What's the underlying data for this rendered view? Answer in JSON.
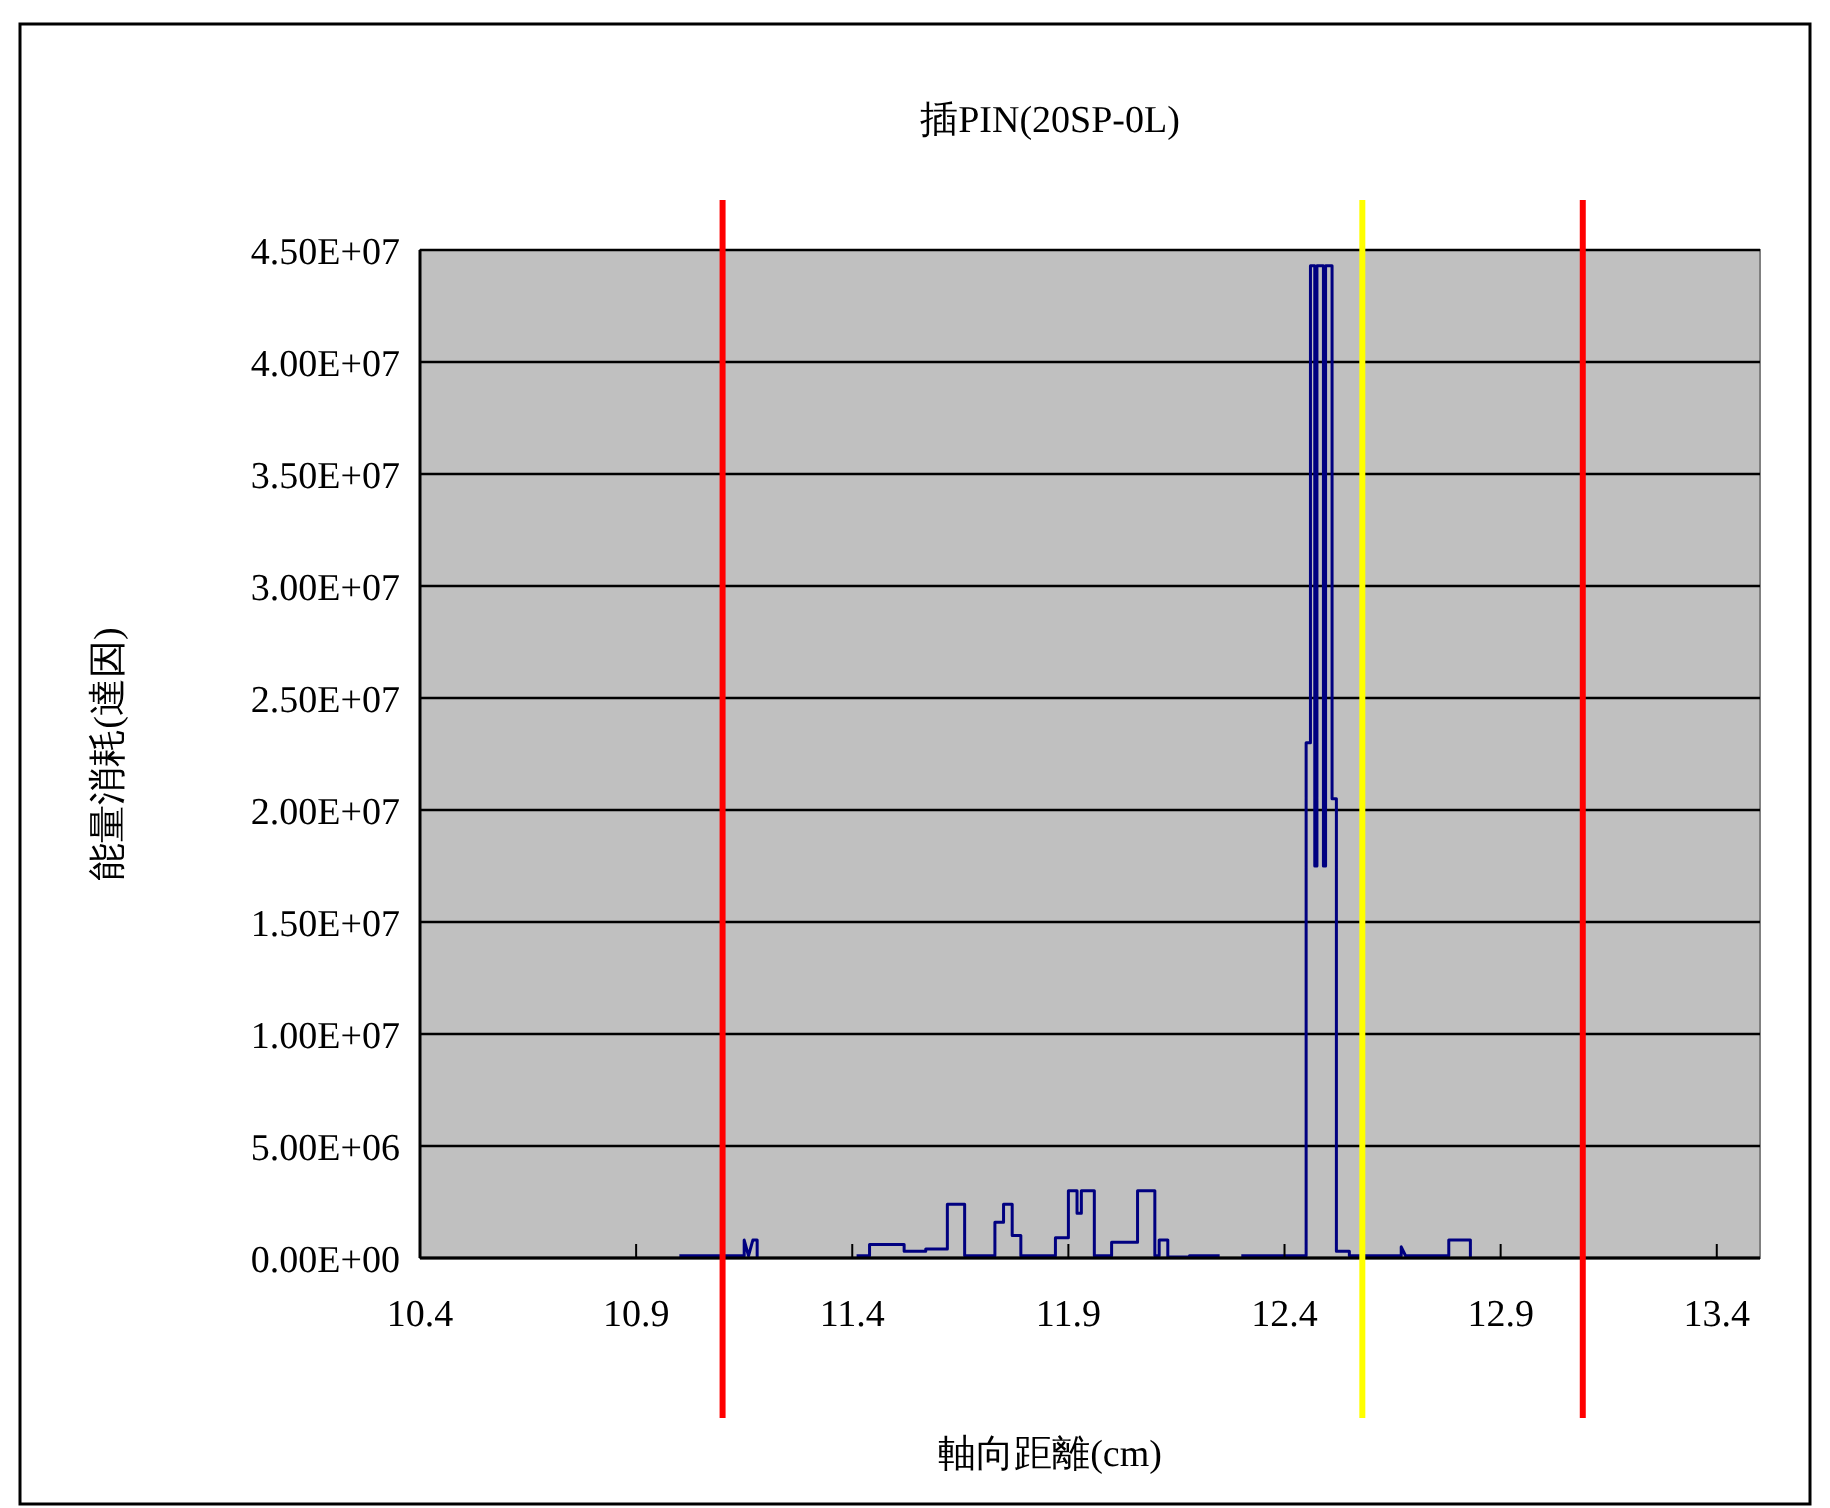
{
  "chart_data": {
    "type": "line",
    "title": "插PIN(20SP-0L)",
    "xlabel": "軸向距離(cm)",
    "ylabel": "能量消耗(達因)",
    "xlim": [
      10.4,
      13.5
    ],
    "xticks": [
      10.4,
      10.9,
      11.4,
      11.9,
      12.4,
      12.9,
      13.4
    ],
    "ylim": [
      0,
      45000000
    ],
    "yticks": [
      {
        "value": 0,
        "label": "0.00E+00"
      },
      {
        "value": 5000000,
        "label": "5.00E+06"
      },
      {
        "value": 10000000,
        "label": "1.00E+07"
      },
      {
        "value": 15000000,
        "label": "1.50E+07"
      },
      {
        "value": 20000000,
        "label": "2.00E+07"
      },
      {
        "value": 25000000,
        "label": "2.50E+07"
      },
      {
        "value": 30000000,
        "label": "3.00E+07"
      },
      {
        "value": 35000000,
        "label": "3.50E+07"
      },
      {
        "value": 40000000,
        "label": "4.00E+07"
      },
      {
        "value": 45000000,
        "label": "4.50E+07"
      }
    ],
    "grid": "y",
    "marker": "none",
    "line_style": "solid",
    "ref_lines": [
      {
        "axis": "x",
        "value": 11.1,
        "color": "#ff0000"
      },
      {
        "axis": "x",
        "value": 12.58,
        "color": "#ffff00"
      },
      {
        "axis": "x",
        "value": 13.09,
        "color": "#ff0000"
      }
    ],
    "series": [
      {
        "color": "#000080",
        "x": [
          11.0,
          11.15,
          11.15,
          11.16,
          11.17,
          11.18,
          11.18,
          11.3,
          11.41,
          11.44,
          11.44,
          11.52,
          11.52,
          11.57,
          11.57,
          11.62,
          11.62,
          11.66,
          11.66,
          11.73,
          11.73,
          11.75,
          11.75,
          11.77,
          11.77,
          11.79,
          11.79,
          11.87,
          11.87,
          11.9,
          11.9,
          11.92,
          11.92,
          11.93,
          11.93,
          11.96,
          11.96,
          12.0,
          12.0,
          12.06,
          12.06,
          12.1,
          12.1,
          12.11,
          12.11,
          12.13,
          12.13,
          12.18,
          12.18,
          12.25,
          12.28,
          12.3,
          12.45,
          12.45,
          12.46,
          12.46,
          12.47,
          12.47,
          12.475,
          12.475,
          12.49,
          12.49,
          12.495,
          12.495,
          12.51,
          12.51,
          12.52,
          12.52,
          12.55,
          12.55,
          12.67,
          12.67,
          12.68,
          12.78,
          12.78,
          12.83,
          12.83
        ],
        "values": [
          100000,
          100000,
          800000,
          100000,
          800000,
          800000,
          0,
          null,
          100000,
          100000,
          600000,
          600000,
          300000,
          300000,
          400000,
          400000,
          2400000,
          2400000,
          100000,
          100000,
          1600000,
          1600000,
          2400000,
          2400000,
          1000000,
          1000000,
          100000,
          100000,
          900000,
          900000,
          3000000,
          3000000,
          2000000,
          2000000,
          3000000,
          3000000,
          100000,
          100000,
          700000,
          700000,
          3000000,
          3000000,
          100000,
          100000,
          800000,
          800000,
          50000,
          50000,
          100000,
          100000,
          null,
          100000,
          100000,
          23000000,
          23000000,
          44300000,
          44300000,
          17500000,
          17500000,
          44300000,
          44300000,
          17500000,
          17500000,
          44300000,
          44300000,
          20500000,
          20500000,
          300000,
          300000,
          100000,
          100000,
          500000,
          100000,
          100000,
          800000,
          800000,
          0
        ]
      }
    ]
  }
}
